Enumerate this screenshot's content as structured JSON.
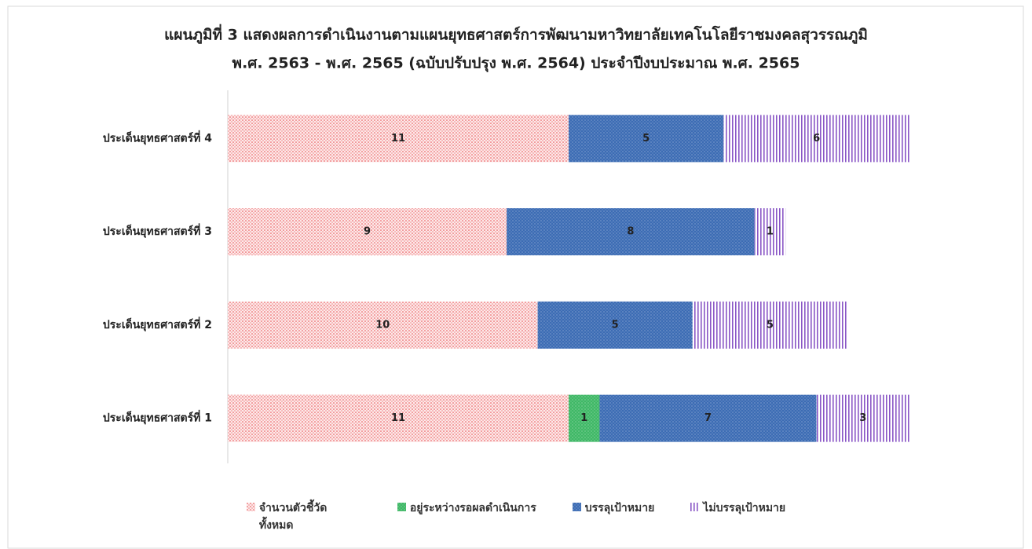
{
  "chart_data": {
    "type": "stacked-bar-horizontal",
    "title": [
      "แผนภูมิที่ 3 แสดงผลการดำเนินงานตามแผนยุทธศาสตร์การพัฒนามหาวิทยาลัยเทคโนโลยีราชมงคลสุวรรณภูมิ",
      "พ.ศ. 2563 - พ.ศ. 2565 (ฉบับปรับปรุง พ.ศ. 2564) ประจำปีงบประมาณ พ.ศ. 2565"
    ],
    "categories": [
      "ประเด็นยุทธศาสตร์ที่ 4",
      "ประเด็นยุทธศาสตร์ที่ 3",
      "ประเด็นยุทธศาสตร์ที่ 2",
      "ประเด็นยุทธศาสตร์ที่ 1"
    ],
    "series": [
      {
        "name": "จำนวนตัวชี้วัดทั้งหมด",
        "color": "#e8474a",
        "values": [
          11,
          9,
          10,
          11
        ]
      },
      {
        "name": "อยู่ระหว่างรอผลดำเนินการ",
        "color": "#3fb866",
        "values": [
          null,
          null,
          null,
          1
        ]
      },
      {
        "name": "บรรลุเป้าหมาย",
        "color": "#3c6cb4",
        "values": [
          5,
          8,
          5,
          7
        ]
      },
      {
        "name": "ไม่บรรลุเป้าหมาย",
        "color": "#8a56c6",
        "values": [
          6,
          1,
          5,
          3
        ]
      }
    ],
    "legend": "bottom"
  }
}
